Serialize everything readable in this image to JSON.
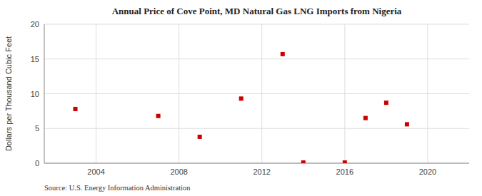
{
  "chart_data": {
    "type": "scatter",
    "title": "Annual Price of Cove Point, MD Natural Gas LNG Imports from Nigeria",
    "ylabel": "Dollars per Thousand Cubic Feet",
    "source": "Source: U.S. Energy Information Administration",
    "x": [
      2003,
      2007,
      2009,
      2011,
      2013,
      2014,
      2016,
      2017,
      2018,
      2019
    ],
    "values": [
      7.8,
      6.8,
      3.8,
      9.3,
      15.7,
      0.1,
      0.1,
      6.5,
      8.7,
      5.6
    ],
    "color": "#cc0000",
    "marker": "square",
    "xlim": [
      2001.5,
      2022
    ],
    "ylim": [
      0,
      20
    ],
    "xticks": [
      2004,
      2008,
      2012,
      2016,
      2020
    ],
    "yticks": [
      0,
      5,
      10,
      15,
      20
    ],
    "grid": true
  }
}
